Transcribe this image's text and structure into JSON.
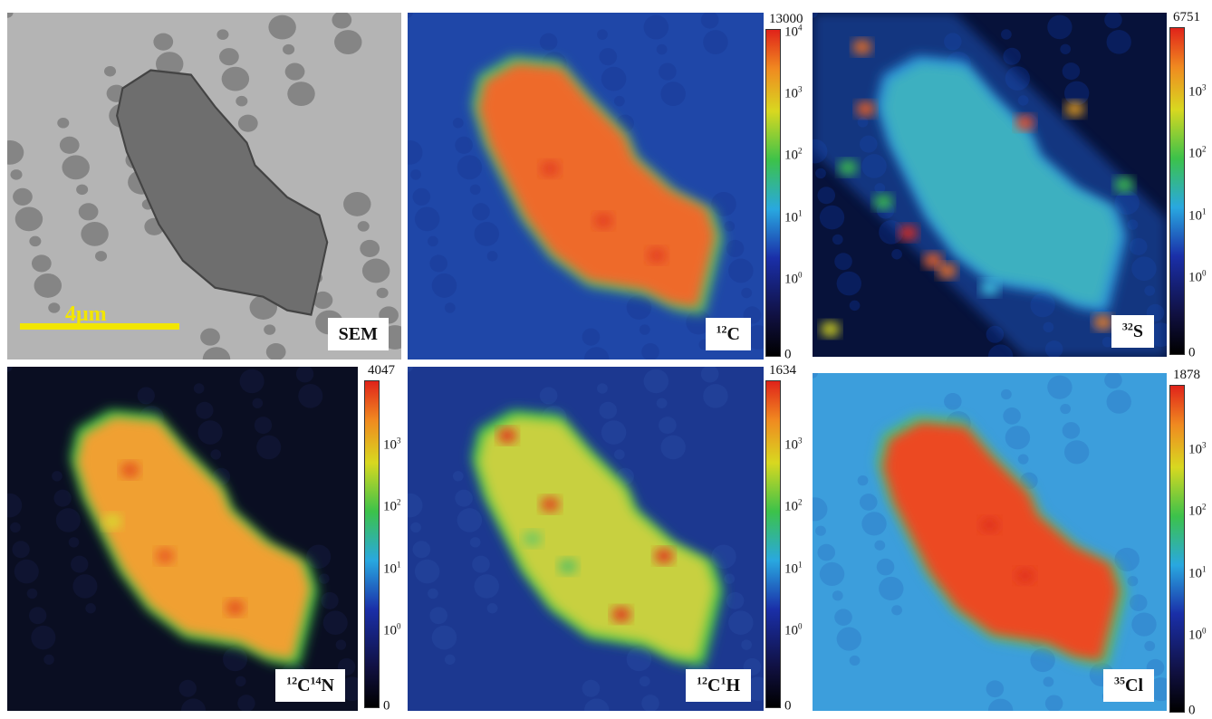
{
  "scale_bar": "4μm",
  "panels": [
    {
      "label": [
        {
          "text": "SEM"
        }
      ]
    },
    {
      "label": [
        {
          "sup": "12"
        },
        {
          "text": "C"
        }
      ],
      "colorbar": {
        "max": "13000",
        "ticks": [
          {
            "base": "10",
            "exp": "4"
          },
          {
            "base": "10",
            "exp": "3"
          },
          {
            "base": "10",
            "exp": "2"
          },
          {
            "base": "10",
            "exp": "1"
          },
          {
            "base": "10",
            "exp": "0"
          },
          {
            "text": "0"
          }
        ]
      }
    },
    {
      "label": [
        {
          "sup": "32"
        },
        {
          "text": "S"
        }
      ],
      "colorbar": {
        "max": "6751",
        "ticks": [
          {
            "base": "10",
            "exp": "3"
          },
          {
            "base": "10",
            "exp": "2"
          },
          {
            "base": "10",
            "exp": "1"
          },
          {
            "base": "10",
            "exp": "0"
          },
          {
            "text": "0"
          }
        ]
      }
    },
    {
      "label": [
        {
          "sup": "12"
        },
        {
          "text": "C"
        },
        {
          "sup": "14"
        },
        {
          "text": "N"
        }
      ],
      "colorbar": {
        "max": "4047",
        "ticks": [
          {
            "base": "10",
            "exp": "3"
          },
          {
            "base": "10",
            "exp": "2"
          },
          {
            "base": "10",
            "exp": "1"
          },
          {
            "base": "10",
            "exp": "0"
          },
          {
            "text": "0"
          }
        ]
      }
    },
    {
      "label": [
        {
          "sup": "12"
        },
        {
          "text": "C"
        },
        {
          "sup": "1"
        },
        {
          "text": "H"
        }
      ],
      "colorbar": {
        "max": "1634",
        "ticks": [
          {
            "base": "10",
            "exp": "3"
          },
          {
            "base": "10",
            "exp": "2"
          },
          {
            "base": "10",
            "exp": "1"
          },
          {
            "base": "10",
            "exp": "0"
          },
          {
            "text": "0"
          }
        ]
      }
    },
    {
      "label": [
        {
          "sup": "35"
        },
        {
          "text": "Cl"
        }
      ],
      "colorbar": {
        "max": "1878",
        "ticks": [
          {
            "base": "10",
            "exp": "3"
          },
          {
            "base": "10",
            "exp": "2"
          },
          {
            "base": "10",
            "exp": "1"
          },
          {
            "base": "10",
            "exp": "0"
          },
          {
            "text": "0"
          }
        ]
      }
    }
  ]
}
